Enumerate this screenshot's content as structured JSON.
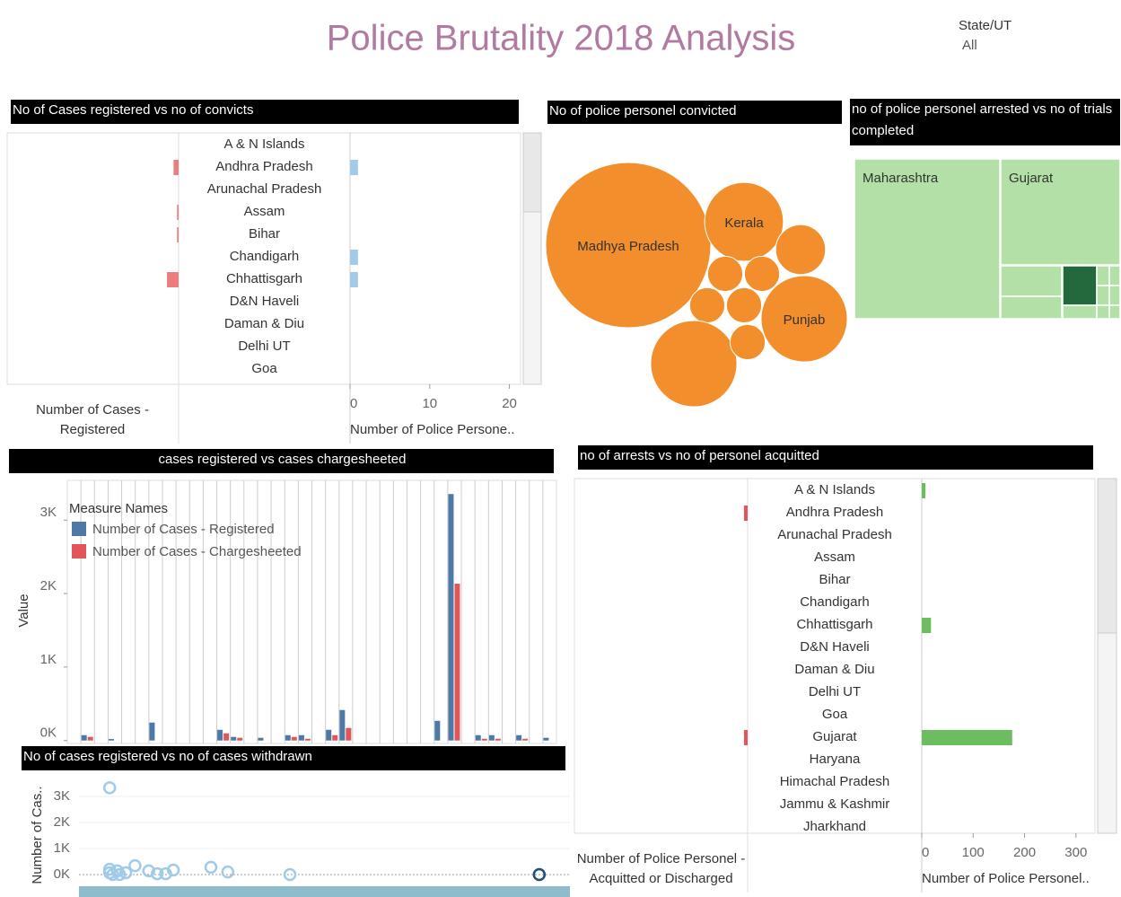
{
  "title": "Police Brutality 2018 Analysis",
  "filter": {
    "label": "State/UT",
    "value": "All"
  },
  "chart_data": [
    {
      "type": "diverging-bar",
      "title": "No of Cases registered vs no of convicts",
      "categories": [
        "A & N Islands",
        "Andhra Pradesh",
        "Arunachal Pradesh",
        "Assam",
        "Bihar",
        "Chandigarh",
        "Chhattisgarh",
        "D&N Haveli",
        "Daman & Diu",
        "Delhi UT",
        "Goa"
      ],
      "series": [
        {
          "name": "Number of Cases - Registered",
          "color": "#ec7c7d",
          "values": [
            0,
            100,
            0,
            30,
            30,
            0,
            230,
            0,
            0,
            0,
            0
          ]
        },
        {
          "name": "Number of Police Persone..",
          "color": "#a3cbe9",
          "values": [
            0,
            1,
            0,
            0,
            0,
            1,
            1,
            0,
            0,
            0,
            0
          ]
        }
      ],
      "x2lim": [
        0,
        3400
      ],
      "xlim": [
        0,
        21.4
      ],
      "xticks": [
        0,
        10,
        20
      ]
    },
    {
      "type": "bubble",
      "title": "No of police personel convicted",
      "categories": [
        "Madhya Pradesh",
        "Kerala",
        null,
        null,
        null,
        null,
        null,
        "Punjab",
        null,
        null
      ],
      "values": [
        22,
        5,
        2,
        1,
        1,
        1,
        1,
        6,
        6,
        1
      ],
      "color": "#f28e2b"
    },
    {
      "type": "treemap",
      "title": "no of police personel arrested vs no of trials completed",
      "categories": [
        "Maharashtra",
        "Gujarat",
        null,
        null,
        null,
        null,
        null,
        null,
        null,
        null,
        null,
        null
      ],
      "values": [
        288,
        157,
        23,
        17,
        17,
        3,
        3,
        3,
        3,
        6,
        2,
        2
      ],
      "colors": [
        "#b3e0a6",
        "#b3e0a6",
        "#b3e0a6",
        "#b3e0a6",
        "#24693d",
        "#b3e0a6",
        "#b3e0a6",
        "#b3e0a6",
        "#b3e0a6",
        "#b3e0a6",
        "#b3e0a6",
        "#b3e0a6"
      ]
    },
    {
      "type": "grouped-bar",
      "title": "cases registered vs cases chargesheeted",
      "categories": [
        null,
        null,
        null,
        null,
        null,
        null,
        null,
        null,
        null,
        null,
        null,
        null,
        null,
        null,
        null,
        null,
        null,
        null,
        null,
        null,
        null,
        null,
        null,
        null,
        null,
        null,
        null,
        null,
        null,
        null,
        null,
        null,
        null,
        null,
        null,
        null
      ],
      "series": [
        {
          "name": "Number of Cases - Registered",
          "color": "#4e79a7",
          "values": [
            0,
            73,
            0,
            20,
            0,
            0,
            244,
            0,
            0,
            0,
            0,
            146,
            49,
            0,
            37,
            0,
            73,
            73,
            0,
            146,
            415,
            0,
            0,
            0,
            0,
            0,
            0,
            268,
            3354,
            0,
            73,
            73,
            0,
            73,
            0,
            37
          ]
        },
        {
          "name": "Number of Cases - Chargesheeted",
          "color": "#e15759",
          "values": [
            0,
            50,
            0,
            0,
            0,
            0,
            0,
            0,
            0,
            0,
            0,
            98,
            37,
            0,
            0,
            0,
            49,
            24,
            0,
            73,
            171,
            0,
            0,
            0,
            0,
            0,
            0,
            0,
            2134,
            0,
            24,
            24,
            0,
            24,
            0,
            0
          ]
        }
      ],
      "ylabel": "Value",
      "legend_title": "Measure Names",
      "legend": "upper left",
      "ylim": [
        -40,
        3540
      ],
      "yticks": [
        {
          "value": 0,
          "label": "0K"
        },
        {
          "value": 1000,
          "label": "1K"
        },
        {
          "value": 2000,
          "label": "2K"
        },
        {
          "value": 3000,
          "label": "3K"
        }
      ]
    },
    {
      "type": "scatter",
      "title": "No of cases registered vs no of cases withdrawn",
      "ylabel": "Number of Cas..",
      "x": [
        0,
        0,
        0,
        0.4,
        1,
        1.3,
        2.1,
        3.3,
        5.1,
        6.2,
        7.3,
        8.3,
        13.2,
        15.4,
        23.5,
        56
      ],
      "values": [
        3330,
        200,
        70,
        0,
        140,
        0,
        70,
        340,
        140,
        30,
        30,
        170,
        280,
        100,
        0,
        0
      ],
      "colors": [
        "#a0cbe8",
        "#a0cbe8",
        "#a0cbe8",
        "#a0cbe8",
        "#a0cbe8",
        "#a0cbe8",
        "#a0cbe8",
        "#a0cbe8",
        "#a0cbe8",
        "#a0cbe8",
        "#a0cbe8",
        "#a0cbe8",
        "#a0cbe8",
        "#a0cbe8",
        "#a0cbe8",
        "#1f4e79"
      ],
      "xlim": [
        -4,
        60
      ],
      "ylim": [
        -380,
        3930
      ],
      "yticks": [
        {
          "value": 0,
          "label": "0K"
        },
        {
          "value": 1000,
          "label": "1K"
        },
        {
          "value": 2000,
          "label": "2K"
        },
        {
          "value": 3000,
          "label": "3K"
        }
      ]
    },
    {
      "type": "diverging-bar",
      "title": "no of arrests vs no of personel acquitted",
      "categories": [
        "A & N Islands",
        "Andhra Pradesh",
        "Arunachal Pradesh",
        "Assam",
        "Bihar",
        "Chandigarh",
        "Chhattisgarh",
        "D&N Haveli",
        "Daman & Diu",
        "Delhi UT",
        "Goa",
        "Gujarat",
        "Haryana",
        "Himachal Pradesh",
        "Jammu & Kashmir",
        "Jharkhand"
      ],
      "series": [
        {
          "name": "Number of Police Personel - Acquitted or Discharged",
          "color": "#e15759",
          "values": [
            0,
            4,
            0,
            0,
            0,
            0,
            0,
            0,
            0,
            0,
            0,
            4,
            0,
            0,
            0,
            0
          ]
        },
        {
          "name": "Number of Police Personel..",
          "color": "#6cbd5f",
          "values": [
            7,
            0,
            0,
            0,
            0,
            0,
            18,
            0,
            0,
            0,
            0,
            176,
            0,
            0,
            0,
            0
          ]
        }
      ],
      "x2lim": [
        0,
        190
      ],
      "xlim": [
        0,
        337
      ],
      "xticks": [
        0,
        100,
        200,
        300
      ]
    }
  ]
}
